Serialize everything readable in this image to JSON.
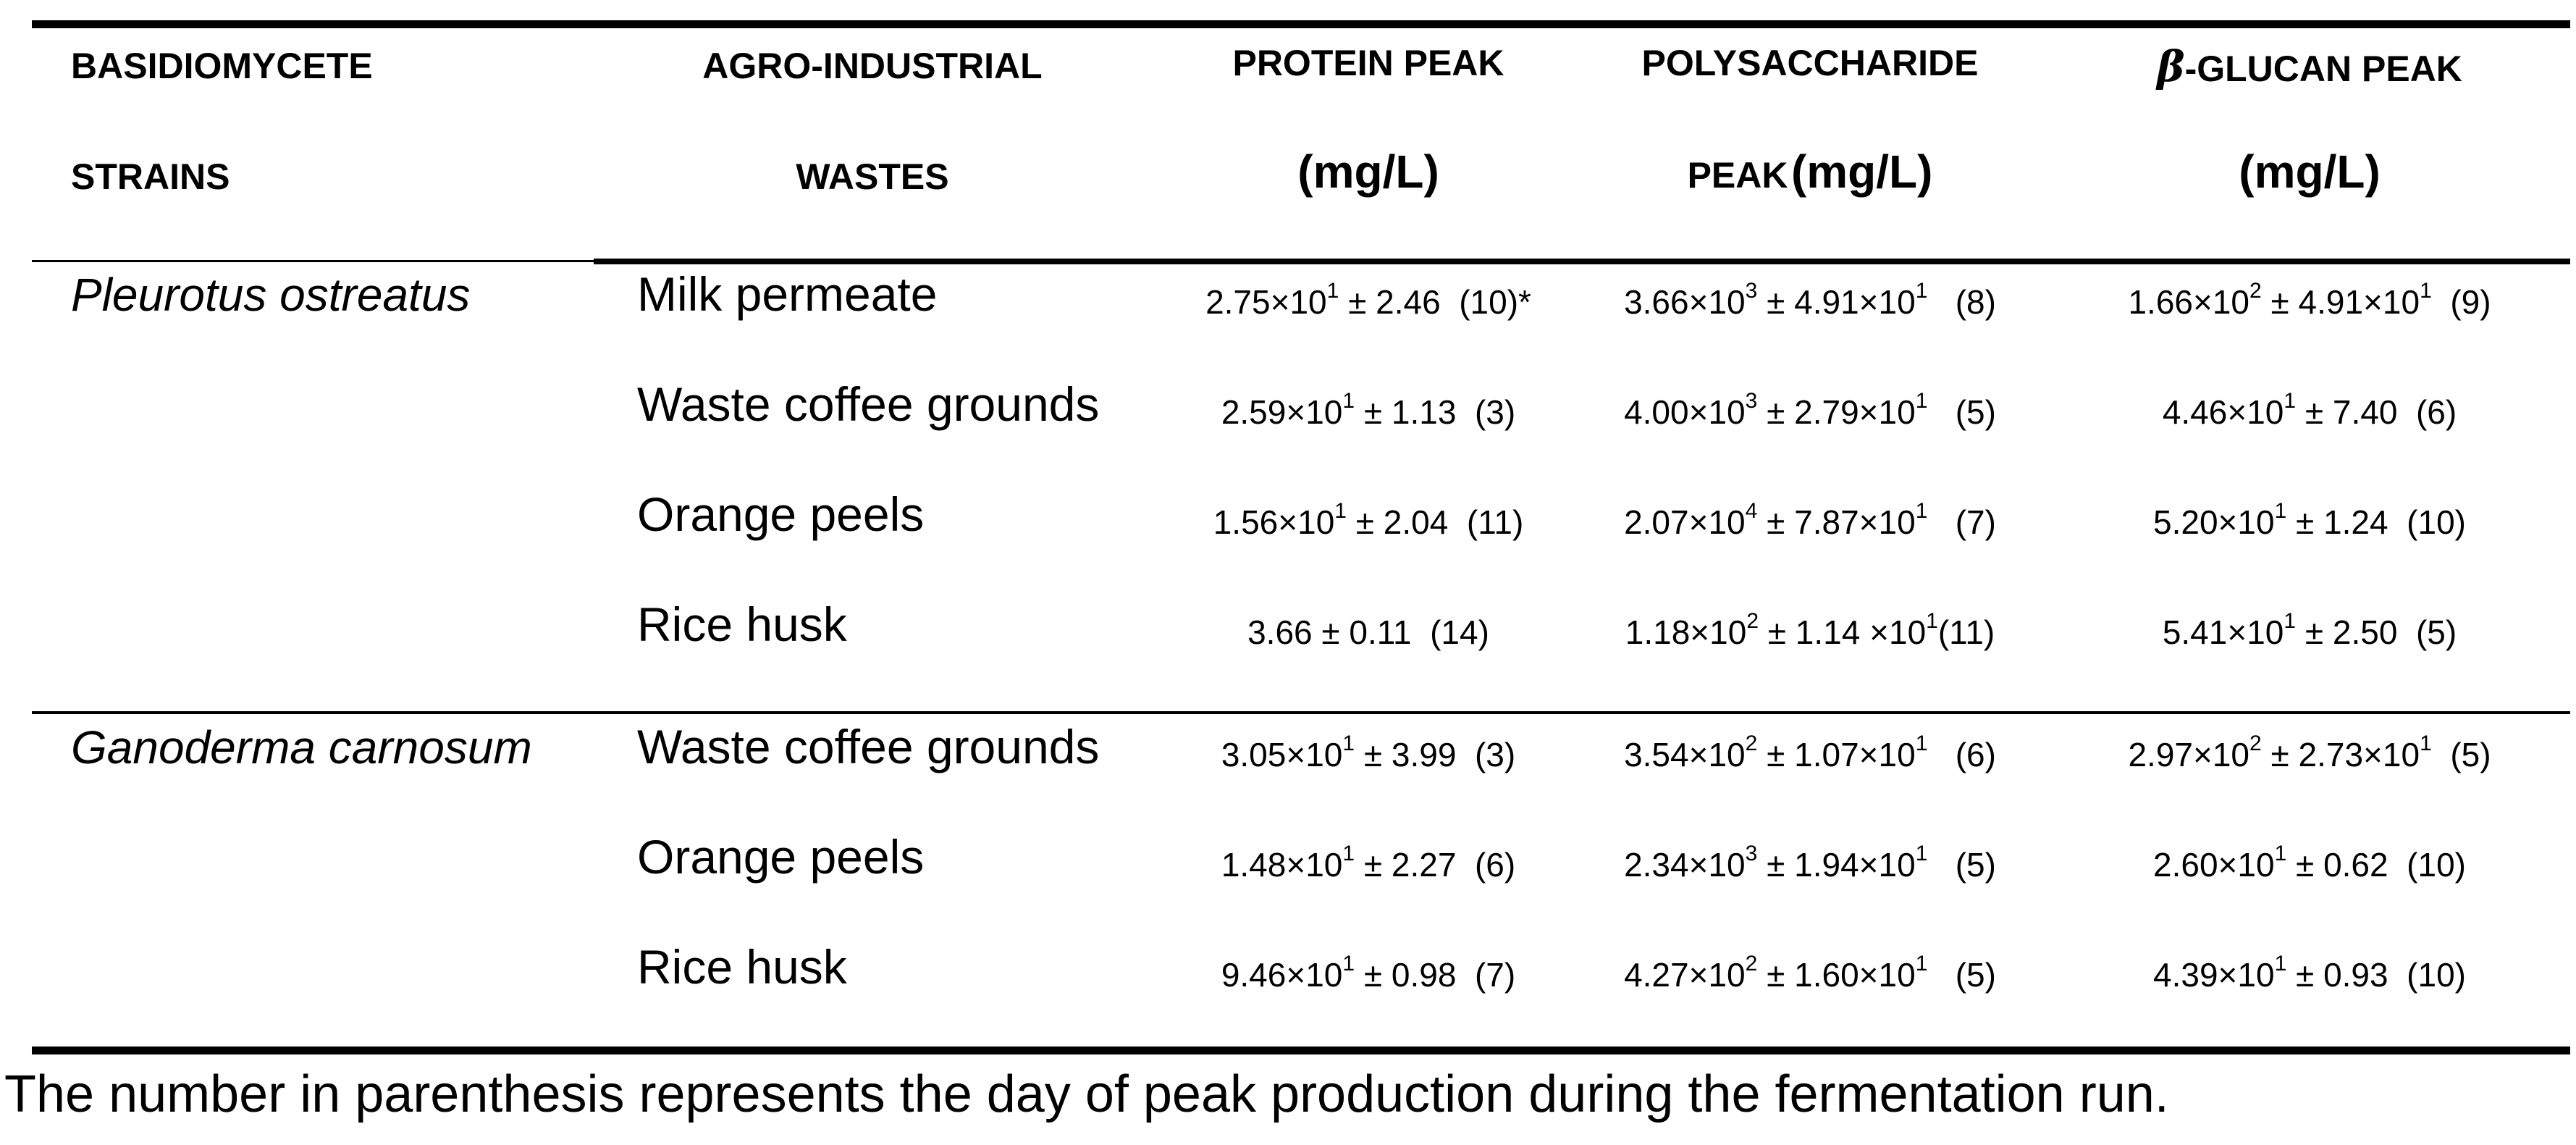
{
  "headers": {
    "strains_1": "Basidiomycete",
    "strains_2": "strains",
    "wastes_1": "Agro-industrial",
    "wastes_2": "wastes",
    "protein_1": "Protein peak",
    "protein_2": "(mg/L)",
    "poly_1": "Polysaccharide",
    "poly_2a": "peak",
    "poly_2b": "(mg/L)",
    "glucan_beta": "β",
    "glucan_1": "-glucan peak",
    "glucan_2": "(mg/L)"
  },
  "groups": [
    {
      "strain": "Pleurotus ostreatus",
      "rows": [
        {
          "waste": "Milk permeate",
          "protein": {
            "m": "2.75×10",
            "me": "1",
            "sd": " ± 2.46",
            "se": "",
            "day": "  (10)*"
          },
          "poly": {
            "m": "3.66×10",
            "me": "3",
            "sd": " ± 4.91×10",
            "se": "1",
            "day": "   (8)"
          },
          "glucan": {
            "m": "1.66×10",
            "me": "2",
            "sd": " ± 4.91×10",
            "se": "1",
            "day": "  (9)"
          }
        },
        {
          "waste": "Waste coffee grounds",
          "protein": {
            "m": "2.59×10",
            "me": "1",
            "sd": " ± 1.13",
            "se": "",
            "day": "  (3)"
          },
          "poly": {
            "m": "4.00×10",
            "me": "3",
            "sd": " ± 2.79×10",
            "se": "1",
            "day": "   (5)"
          },
          "glucan": {
            "m": "4.46×10",
            "me": "1",
            "sd": " ± 7.40",
            "se": "",
            "day": "  (6)"
          }
        },
        {
          "waste": "Orange peels",
          "protein": {
            "m": "1.56×10",
            "me": "1",
            "sd": " ± 2.04",
            "se": "",
            "day": "  (11)"
          },
          "poly": {
            "m": "2.07×10",
            "me": "4",
            "sd": " ± 7.87×10",
            "se": "1",
            "day": "   (7)"
          },
          "glucan": {
            "m": "5.20×10",
            "me": "1",
            "sd": " ± 1.24",
            "se": "",
            "day": "  (10)"
          }
        },
        {
          "waste": "Rice husk",
          "protein": {
            "m": "3.66",
            "me": "",
            "sd": " ± 0.11",
            "se": "",
            "day": "  (14)"
          },
          "poly": {
            "m": "1.18×10",
            "me": "2",
            "sd": " ± 1.14 ×10",
            "se": "1",
            "day": "(11)"
          },
          "glucan": {
            "m": "5.41×10",
            "me": "1",
            "sd": " ± 2.50",
            "se": "",
            "day": "  (5)"
          }
        }
      ]
    },
    {
      "strain": "Ganoderma carnosum",
      "rows": [
        {
          "waste": "Waste coffee grounds",
          "protein": {
            "m": "3.05×10",
            "me": "1",
            "sd": " ± 3.99",
            "se": "",
            "day": "  (3)"
          },
          "poly": {
            "m": "3.54×10",
            "me": "2",
            "sd": " ± 1.07×10",
            "se": "1",
            "day": "   (6)"
          },
          "glucan": {
            "m": "2.97×10",
            "me": "2",
            "sd": " ± 2.73×10",
            "se": "1",
            "day": "  (5)"
          }
        },
        {
          "waste": "Orange peels",
          "protein": {
            "m": "1.48×10",
            "me": "1",
            "sd": " ± 2.27",
            "se": "",
            "day": "  (6)"
          },
          "poly": {
            "m": "2.34×10",
            "me": "3",
            "sd": " ± 1.94×10",
            "se": "1",
            "day": "   (5)"
          },
          "glucan": {
            "m": "2.60×10",
            "me": "1",
            "sd": " ± 0.62",
            "se": "",
            "day": "  (10)"
          }
        },
        {
          "waste": "Rice husk",
          "protein": {
            "m": "9.46×10",
            "me": "1",
            "sd": " ± 0.98",
            "se": "",
            "day": "  (7)"
          },
          "poly": {
            "m": "4.27×10",
            "me": "2",
            "sd": " ± 1.60×10",
            "se": "1",
            "day": "   (5)"
          },
          "glucan": {
            "m": "4.39×10",
            "me": "1",
            "sd": " ± 0.93",
            "se": "",
            "day": "  (10)"
          }
        }
      ]
    }
  ],
  "footnote": "The number in parenthesis represents the day of peak production during the fermentation run."
}
